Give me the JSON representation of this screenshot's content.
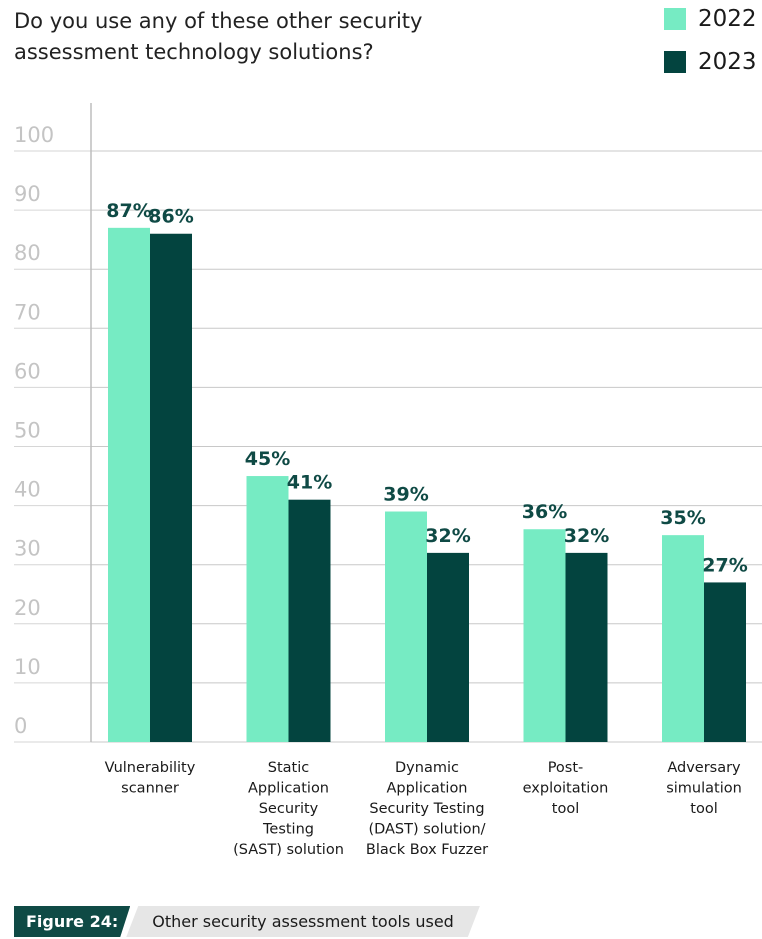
{
  "chart_data": {
    "type": "bar",
    "title": "Do you use any of these other security assessment technology solutions?",
    "categories": [
      [
        "Vulnerability",
        "scanner"
      ],
      [
        "Static",
        "Application",
        "Security",
        "Testing",
        "(SAST) solution"
      ],
      [
        "Dynamic",
        "Application",
        "Security Testing",
        "(DAST) solution/",
        "Black Box Fuzzer"
      ],
      [
        "Post-",
        "exploitation",
        "tool"
      ],
      [
        "Adversary",
        "simulation",
        "tool"
      ]
    ],
    "series": [
      {
        "name": "2022",
        "values": [
          87,
          45,
          39,
          36,
          35
        ],
        "labels": [
          "87%",
          "45%",
          "39%",
          "36%",
          "35%"
        ]
      },
      {
        "name": "2023",
        "values": [
          86,
          41,
          32,
          32,
          27
        ],
        "labels": [
          "86%",
          "41%",
          "32%",
          "32%",
          "27%"
        ]
      }
    ],
    "colors": {
      "2022": "#76ebc3",
      "2023": "#03443f"
    },
    "yticks": [
      0,
      10,
      20,
      30,
      40,
      50,
      60,
      70,
      80,
      90,
      100
    ],
    "ylim": [
      0,
      100
    ],
    "xlabel": "",
    "ylabel": "",
    "grid": true,
    "legend_position": "top-right"
  },
  "caption": {
    "figure": "Figure 24:",
    "text": "Other security assessment tools used"
  }
}
